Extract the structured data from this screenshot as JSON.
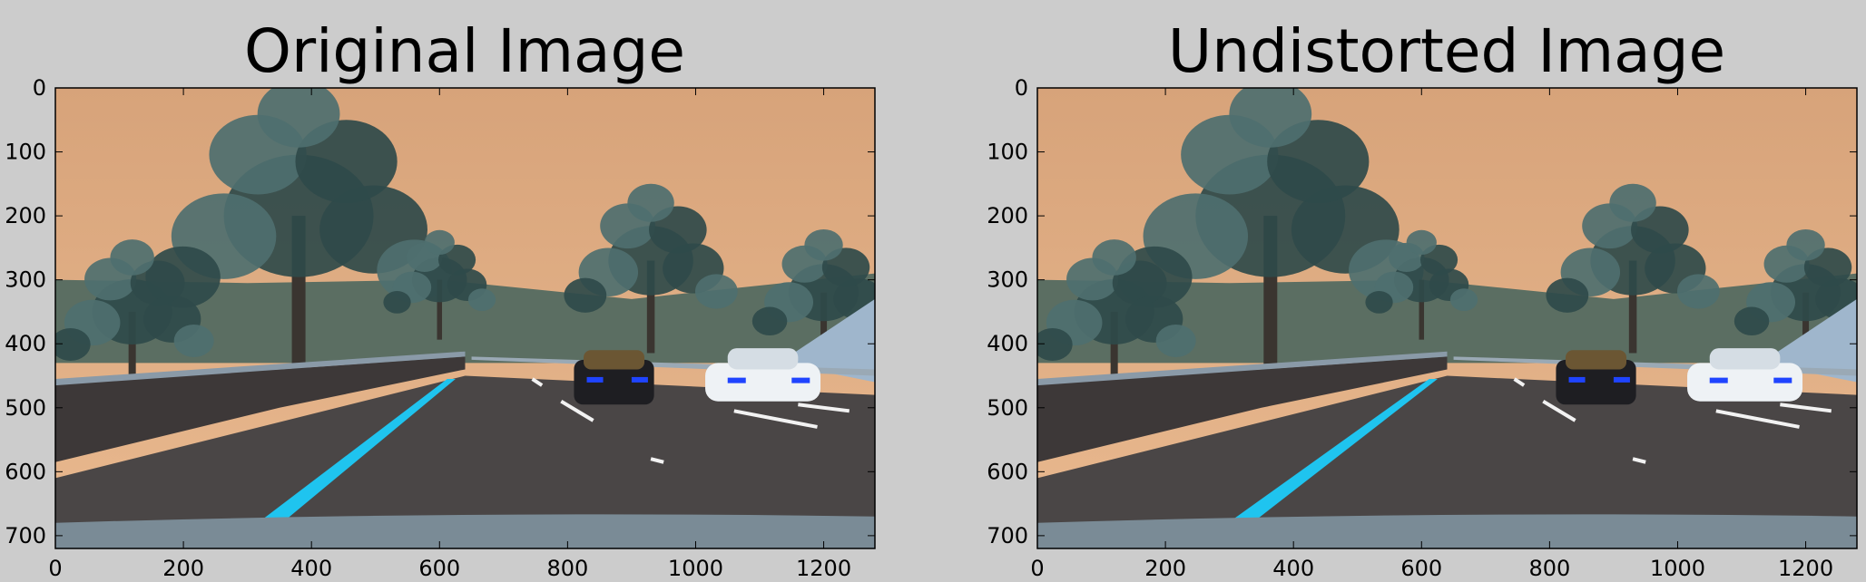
{
  "figure": {
    "background": "#cccccc",
    "image_content": "dashcam road scene: trees, hazy orange sky, highway with blue lane line, black sedan and white sedan"
  },
  "panels": [
    {
      "title": "Original Image",
      "x_ticks": [
        "0",
        "200",
        "400",
        "600",
        "800",
        "1000",
        "1200"
      ],
      "y_ticks": [
        "0",
        "100",
        "200",
        "300",
        "400",
        "500",
        "600",
        "700"
      ],
      "x_range": [
        0,
        1280
      ],
      "y_range": [
        0,
        720
      ],
      "distortion": "original"
    },
    {
      "title": "Undistorted Image",
      "x_ticks": [
        "0",
        "200",
        "400",
        "600",
        "800",
        "1000",
        "1200"
      ],
      "y_ticks": [
        "0",
        "100",
        "200",
        "300",
        "400",
        "500",
        "600",
        "700"
      ],
      "x_range": [
        0,
        1280
      ],
      "y_range": [
        0,
        720
      ],
      "distortion": "undistorted"
    }
  ],
  "colors": {
    "sky_top": "#d7a37a",
    "sky_bottom": "#e9b98f",
    "tree_dark": "#2f4a4a",
    "tree_mid": "#4e6f6f",
    "road": "#4a4646",
    "lane_blue": "#1fc4ef",
    "lane_white": "#f2f2f2",
    "hood": "#7a8b96"
  }
}
